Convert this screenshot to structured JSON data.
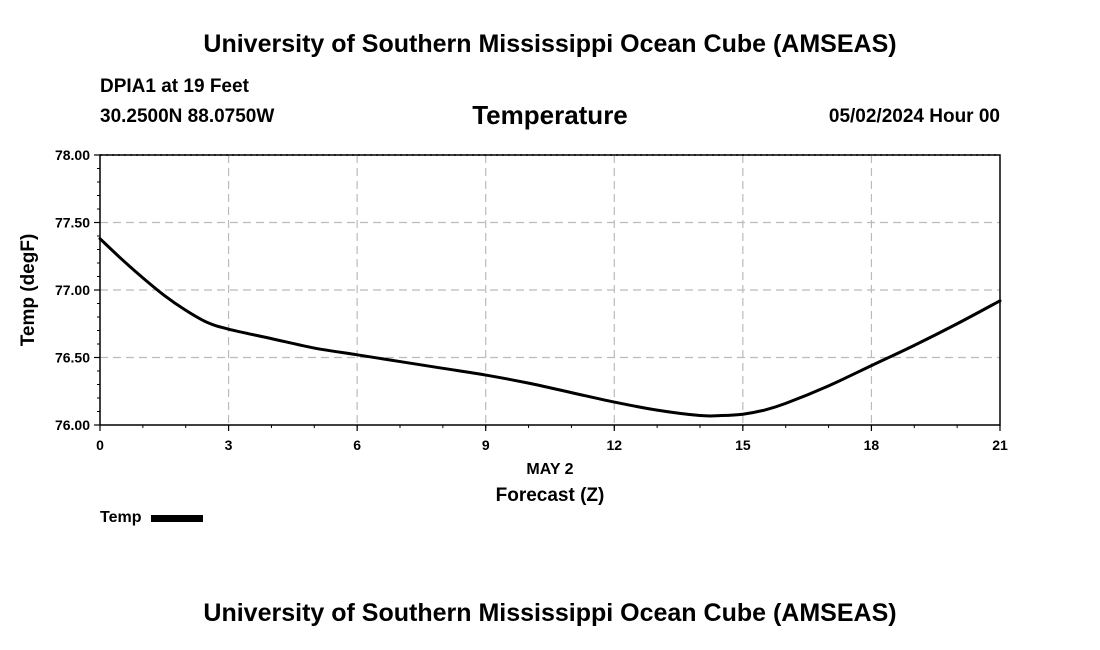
{
  "header": {
    "title": "University of Southern Mississippi Ocean Cube (AMSEAS)",
    "station": "DPIA1 at 19 Feet",
    "coords": "30.2500N  88.0750W",
    "plot_title": "Temperature",
    "datetime": "05/02/2024 Hour 00"
  },
  "footer": {
    "title": "University of Southern Mississippi Ocean Cube (AMSEAS)"
  },
  "legend": {
    "label": "Temp"
  },
  "chart_data": {
    "type": "line",
    "title": "Temperature",
    "xlabel": "Forecast (Z)",
    "ylabel": "Temp (degF)",
    "x_day_label": "MAY 2",
    "xlim": [
      0,
      21
    ],
    "ylim": [
      76.0,
      78.0
    ],
    "x_ticks": [
      0,
      3,
      6,
      9,
      12,
      15,
      18,
      21
    ],
    "y_ticks": [
      76.0,
      76.5,
      77.0,
      77.5,
      78.0
    ],
    "y_tick_labels": [
      "76.00",
      "76.50",
      "77.00",
      "77.50",
      "78.00"
    ],
    "grid": true,
    "legend_position": "bottom-left",
    "line_color": "#000000",
    "series": [
      {
        "name": "Temp",
        "x": [
          0,
          0.5,
          1,
          1.5,
          2,
          2.5,
          3,
          4,
          5,
          6,
          7,
          8,
          9,
          10,
          11,
          12,
          13,
          14,
          14.5,
          15,
          15.5,
          16,
          17,
          18,
          19,
          20,
          21
        ],
        "y": [
          77.38,
          77.23,
          77.09,
          76.96,
          76.85,
          76.76,
          76.71,
          76.64,
          76.57,
          76.52,
          76.47,
          76.42,
          76.37,
          76.31,
          76.24,
          76.17,
          76.11,
          76.07,
          76.07,
          76.08,
          76.11,
          76.16,
          76.29,
          76.44,
          76.59,
          76.75,
          76.92
        ]
      }
    ]
  }
}
